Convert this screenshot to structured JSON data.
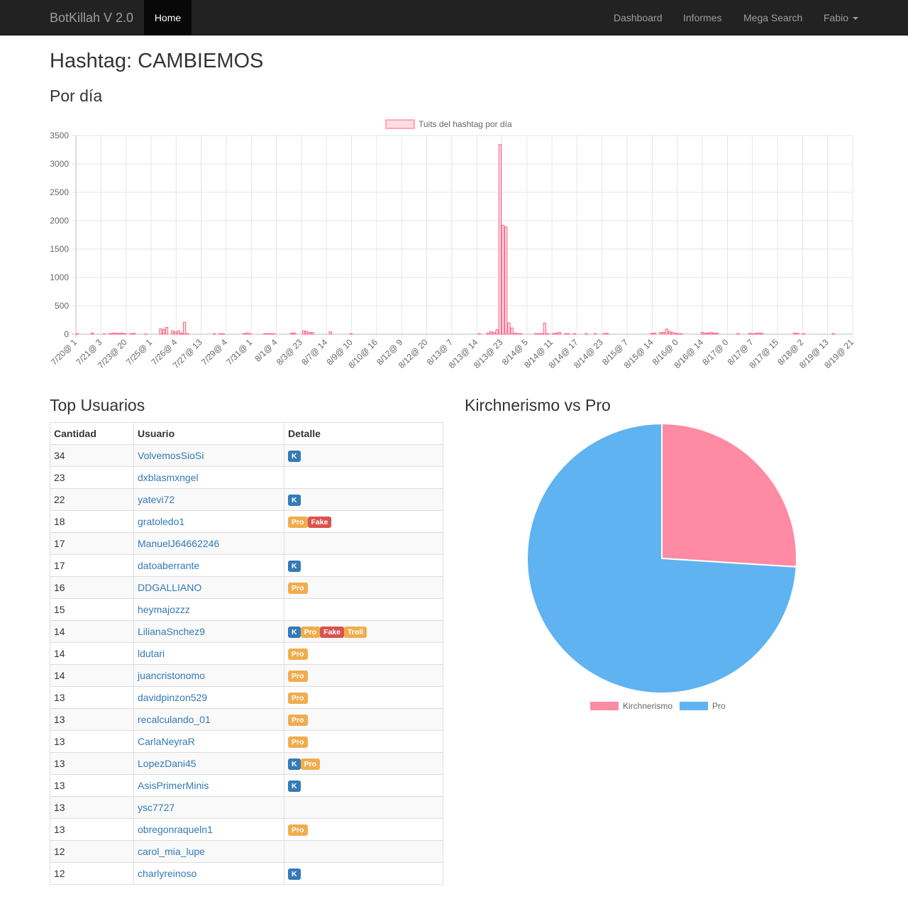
{
  "navbar": {
    "brand": "BotKillah V 2.0",
    "home": "Home",
    "links": [
      "Dashboard",
      "Informes",
      "Mega Search"
    ],
    "user": "Fabio"
  },
  "page": {
    "title": "Hashtag: CAMBIEMOS",
    "per_day_heading": "Por día",
    "top_users_heading": "Top Usuarios",
    "pie_heading": "Kirchnerismo vs Pro"
  },
  "table": {
    "headers": [
      "Cantidad",
      "Usuario",
      "Detalle"
    ],
    "rows": [
      {
        "count": "34",
        "user": "VolvemosSioSi",
        "tags": [
          "K"
        ]
      },
      {
        "count": "23",
        "user": "dxblasmxngel",
        "tags": []
      },
      {
        "count": "22",
        "user": "yatevi72",
        "tags": [
          "K"
        ]
      },
      {
        "count": "18",
        "user": "gratoledo1",
        "tags": [
          "Pro",
          "Fake"
        ]
      },
      {
        "count": "17",
        "user": "ManuelJ64662246",
        "tags": []
      },
      {
        "count": "17",
        "user": "datoaberrante",
        "tags": [
          "K"
        ]
      },
      {
        "count": "16",
        "user": "DDGALLIANO",
        "tags": [
          "Pro"
        ]
      },
      {
        "count": "15",
        "user": "heymajozzz",
        "tags": []
      },
      {
        "count": "14",
        "user": "LilianaSnchez9",
        "tags": [
          "K",
          "Pro",
          "Fake",
          "Troll"
        ]
      },
      {
        "count": "14",
        "user": "ldutari",
        "tags": [
          "Pro"
        ]
      },
      {
        "count": "14",
        "user": "juancristonomo",
        "tags": [
          "Pro"
        ]
      },
      {
        "count": "13",
        "user": "davidpinzon529",
        "tags": [
          "Pro"
        ]
      },
      {
        "count": "13",
        "user": "recalculando_01",
        "tags": [
          "Pro"
        ]
      },
      {
        "count": "13",
        "user": "CarlaNeyraR",
        "tags": [
          "Pro"
        ]
      },
      {
        "count": "13",
        "user": "LopezDani45",
        "tags": [
          "K",
          "Pro"
        ]
      },
      {
        "count": "13",
        "user": "AsisPrimerMinis",
        "tags": [
          "K"
        ]
      },
      {
        "count": "13",
        "user": "ysc7727",
        "tags": []
      },
      {
        "count": "13",
        "user": "obregonraqueln1",
        "tags": [
          "Pro"
        ]
      },
      {
        "count": "12",
        "user": "carol_mia_lupe",
        "tags": []
      },
      {
        "count": "12",
        "user": "charlyreinoso",
        "tags": [
          "K"
        ]
      }
    ]
  },
  "colors": {
    "bar_fill": "#ffdbe3",
    "bar_stroke": "#ff6384",
    "pie_k": "#ff8aa3",
    "pie_pro": "#5eb3f0"
  },
  "chart_data": [
    {
      "type": "bar",
      "legend": "Tuits del hashtag  por día",
      "legend_position": "top",
      "grid": true,
      "ylim": [
        0,
        3500
      ],
      "yticks": [
        0,
        500,
        1000,
        1500,
        2000,
        2500,
        3000,
        3500
      ],
      "x_tick_labels": [
        "7/20@ 1",
        "7/21@ 3",
        "7/23@ 20",
        "7/25@ 1",
        "7/26@ 4",
        "7/27@ 13",
        "7/29@ 4",
        "7/31@ 1",
        "8/1@ 4",
        "8/3@ 23",
        "8/7@ 14",
        "8/9@ 10",
        "8/10@ 16",
        "8/12@ 9",
        "8/12@ 20",
        "8/13@ 7",
        "8/13@ 14",
        "8/13@ 23",
        "8/14@ 5",
        "8/14@ 11",
        "8/14@ 17",
        "8/14@ 23",
        "8/15@ 7",
        "8/15@ 14",
        "8/16@ 0",
        "8/16@ 14",
        "8/17@ 0",
        "8/17@ 7",
        "8/17@ 15",
        "8/18@ 2",
        "8/19@ 13",
        "8/19@ 21"
      ],
      "values": [
        10,
        0,
        0,
        0,
        0,
        20,
        0,
        0,
        0,
        5,
        0,
        10,
        20,
        15,
        15,
        20,
        10,
        0,
        10,
        15,
        0,
        0,
        0,
        5,
        0,
        0,
        0,
        0,
        95,
        85,
        120,
        0,
        60,
        40,
        60,
        20,
        210,
        10,
        0,
        0,
        0,
        0,
        0,
        0,
        0,
        0,
        10,
        0,
        10,
        10,
        0,
        0,
        0,
        0,
        0,
        0,
        10,
        20,
        10,
        0,
        0,
        0,
        0,
        10,
        10,
        10,
        10,
        0,
        0,
        0,
        0,
        0,
        20,
        20,
        0,
        0,
        60,
        50,
        30,
        30,
        0,
        0,
        0,
        0,
        0,
        45,
        0,
        0,
        0,
        0,
        0,
        0,
        10,
        0,
        0,
        0,
        0,
        0,
        0,
        0,
        0,
        0,
        0,
        0,
        0,
        0,
        0,
        0,
        0,
        0,
        0,
        0,
        0,
        0,
        0,
        0,
        0,
        0,
        0,
        0,
        0,
        0,
        0,
        0,
        0,
        0,
        0,
        0,
        0,
        0,
        0,
        0,
        0,
        0,
        0,
        10,
        0,
        0,
        20,
        45,
        30,
        80,
        3340,
        1920,
        1890,
        200,
        110,
        20,
        10,
        10,
        0,
        0,
        0,
        0,
        10,
        10,
        10,
        195,
        10,
        0,
        10,
        20,
        30,
        0,
        10,
        10,
        0,
        10,
        0,
        0,
        0,
        10,
        0,
        0,
        10,
        0,
        0,
        10,
        15,
        0,
        0,
        0,
        0,
        0,
        0,
        0,
        0,
        0,
        0,
        0,
        0,
        0,
        0,
        15,
        20,
        0,
        30,
        30,
        90,
        50,
        30,
        15,
        10,
        10,
        0,
        0,
        0,
        0,
        0,
        0,
        30,
        20,
        20,
        30,
        20,
        20,
        0,
        0,
        0,
        0,
        0,
        0,
        10,
        0,
        0,
        0,
        15,
        10,
        15,
        20,
        15,
        0,
        0,
        0,
        0,
        0,
        0,
        0,
        0,
        0,
        0,
        20,
        15,
        0,
        10,
        0,
        0,
        0,
        0,
        0,
        0,
        0,
        0,
        0,
        10,
        0,
        0,
        0,
        0,
        0,
        0
      ]
    },
    {
      "type": "pie",
      "labels": [
        "Kirchnerismo",
        "Pro"
      ],
      "values": [
        26,
        74
      ],
      "legend_position": "bottom"
    }
  ]
}
